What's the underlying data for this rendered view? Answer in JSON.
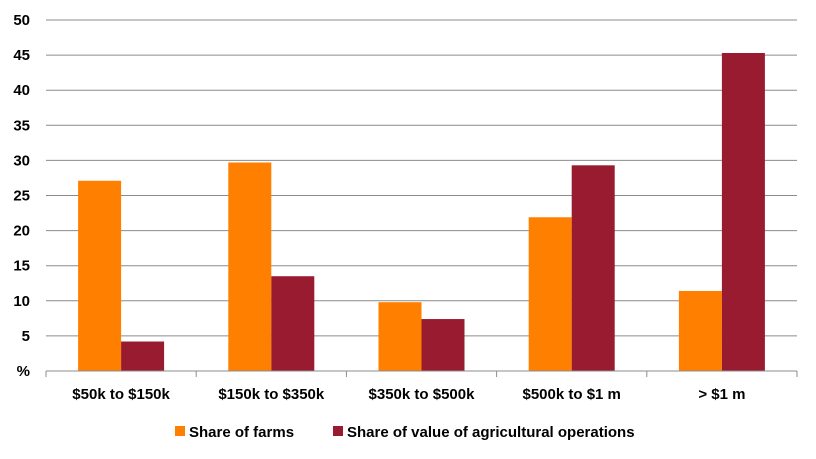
{
  "chart_data": {
    "type": "bar",
    "categories": [
      "$50k to $150k",
      "$150k to $350k",
      "$350k to $500k",
      "$500k to $1 m",
      "> $1 m"
    ],
    "series": [
      {
        "name": "Share of farms",
        "color": "#FF7F00",
        "values": [
          27.1,
          29.7,
          9.8,
          21.9,
          11.4
        ]
      },
      {
        "name": "Share of value of agricultural operations",
        "color": "#991B30",
        "values": [
          4.2,
          13.5,
          7.4,
          29.3,
          45.3
        ]
      }
    ],
    "y_ticks": [
      "%",
      "5",
      "10",
      "15",
      "20",
      "25",
      "30",
      "35",
      "40",
      "45",
      "50"
    ],
    "ylim": [
      0,
      50
    ],
    "y_step": 5,
    "grid": true,
    "legend_position": "bottom",
    "title": "",
    "xlabel": "",
    "ylabel": ""
  }
}
